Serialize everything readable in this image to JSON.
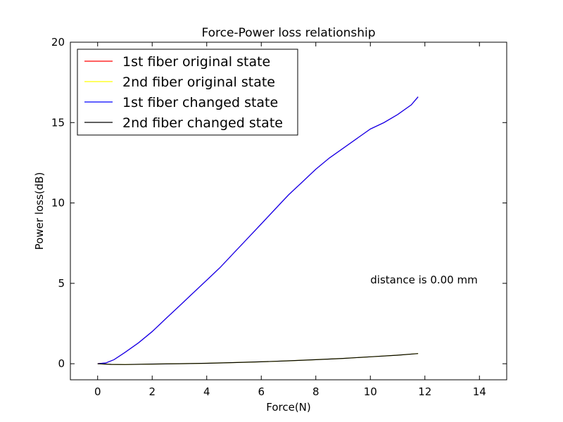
{
  "chart_data": {
    "type": "line",
    "title": "Force-Power loss relationship",
    "xlabel": "Force(N)",
    "ylabel": "Power loss(dB)",
    "xlim": [
      -1,
      15
    ],
    "ylim": [
      -1,
      20
    ],
    "x_ticks": [
      0,
      2,
      4,
      6,
      8,
      10,
      12,
      14
    ],
    "y_ticks": [
      0,
      5,
      10,
      15,
      20
    ],
    "grid": false,
    "legend_position": "top-left",
    "annotation": {
      "text": "distance is 0.00 mm",
      "x": 10,
      "y": 5.0
    },
    "series": [
      {
        "name": "1st fiber original state",
        "color": "#ff0000",
        "x": [
          0,
          0.3,
          0.6,
          1,
          1.5,
          2,
          2.5,
          3,
          3.5,
          4,
          4.5,
          5,
          5.5,
          6,
          6.5,
          7,
          7.5,
          8,
          8.5,
          9,
          9.5,
          10,
          10.5,
          11,
          11.5,
          11.75
        ],
        "y": [
          0,
          0.05,
          0.25,
          0.7,
          1.3,
          2.0,
          2.8,
          3.6,
          4.4,
          5.2,
          6.0,
          6.9,
          7.8,
          8.7,
          9.6,
          10.5,
          11.3,
          12.1,
          12.8,
          13.4,
          14.0,
          14.6,
          15.0,
          15.5,
          16.1,
          16.6
        ]
      },
      {
        "name": "2nd fiber original state",
        "color": "#ffff00",
        "x": [
          0,
          0.5,
          1,
          2,
          3,
          4,
          5,
          6,
          7,
          8,
          9,
          10,
          11,
          11.75
        ],
        "y": [
          0,
          -0.04,
          -0.05,
          -0.02,
          0.0,
          0.03,
          0.07,
          0.12,
          0.18,
          0.25,
          0.33,
          0.43,
          0.53,
          0.63
        ]
      },
      {
        "name": "1st fiber changed state",
        "color": "#0000ff",
        "x": [
          0,
          0.3,
          0.6,
          1,
          1.5,
          2,
          2.5,
          3,
          3.5,
          4,
          4.5,
          5,
          5.5,
          6,
          6.5,
          7,
          7.5,
          8,
          8.5,
          9,
          9.5,
          10,
          10.5,
          11,
          11.5,
          11.75
        ],
        "y": [
          0,
          0.05,
          0.25,
          0.7,
          1.3,
          2.0,
          2.8,
          3.6,
          4.4,
          5.2,
          6.0,
          6.9,
          7.8,
          8.7,
          9.6,
          10.5,
          11.3,
          12.1,
          12.8,
          13.4,
          14.0,
          14.6,
          15.0,
          15.5,
          16.1,
          16.6
        ]
      },
      {
        "name": "2nd fiber changed state",
        "color": "#000000",
        "x": [
          0,
          0.5,
          1,
          2,
          3,
          4,
          5,
          6,
          7,
          8,
          9,
          10,
          11,
          11.75
        ],
        "y": [
          0,
          -0.04,
          -0.05,
          -0.02,
          0.0,
          0.03,
          0.07,
          0.12,
          0.18,
          0.25,
          0.33,
          0.43,
          0.53,
          0.63
        ]
      }
    ]
  }
}
